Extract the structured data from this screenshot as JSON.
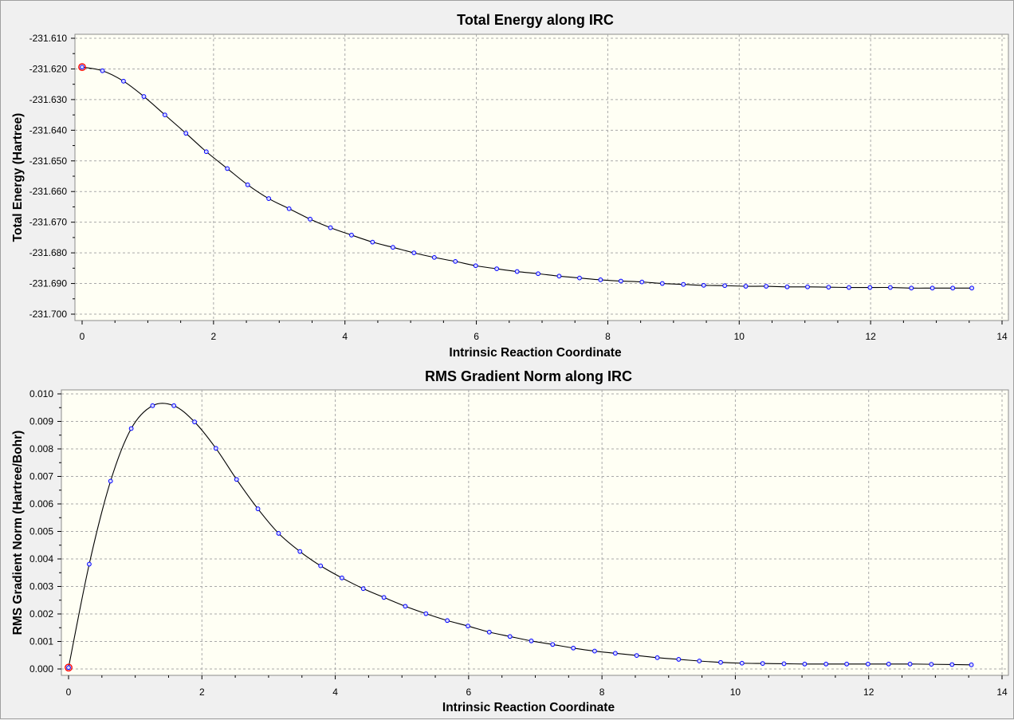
{
  "colors": {
    "plot_background": "#fffff4",
    "grid": "#a9a9a9",
    "line": "#000000",
    "marker": "#0000ff",
    "marker_fill": "#d8d8ff",
    "highlight": "#ff0000"
  },
  "chart_data": [
    {
      "type": "line",
      "title": "Total Energy along IRC",
      "xlabel": "Intrinsic Reaction Coordinate",
      "ylabel": "Total Energy (Hartree)",
      "xlim": [
        0,
        14
      ],
      "ylim": [
        -231.7,
        -231.61
      ],
      "grid": true,
      "xticks": [
        "0",
        "2",
        "4",
        "6",
        "8",
        "10",
        "12",
        "14"
      ],
      "yticks": [
        "-231.610",
        "-231.620",
        "-231.630",
        "-231.640",
        "-231.650",
        "-231.660",
        "-231.670",
        "-231.680",
        "-231.690",
        "-231.700"
      ],
      "highlight_point": [
        0.0,
        -231.6194
      ],
      "series": [
        {
          "x": [
            0.0,
            0.31,
            0.63,
            0.94,
            1.26,
            1.58,
            1.89,
            2.21,
            2.52,
            2.84,
            3.15,
            3.47,
            3.78,
            4.1,
            4.42,
            4.73,
            5.05,
            5.36,
            5.68,
            5.99,
            6.31,
            6.62,
            6.94,
            7.26,
            7.57,
            7.89,
            8.2,
            8.52,
            8.83,
            9.15,
            9.46,
            9.78,
            10.1,
            10.41,
            10.73,
            11.04,
            11.36,
            11.67,
            11.99,
            12.3,
            12.62,
            12.94,
            13.25,
            13.54
          ],
          "y": [
            -231.6194,
            -231.6206,
            -231.624,
            -231.629,
            -231.635,
            -231.641,
            -231.647,
            -231.6525,
            -231.6578,
            -231.6623,
            -231.6656,
            -231.669,
            -231.6718,
            -231.6742,
            -231.6765,
            -231.6782,
            -231.68,
            -231.6815,
            -231.6828,
            -231.6842,
            -231.6852,
            -231.6861,
            -231.6868,
            -231.6876,
            -231.6882,
            -231.6888,
            -231.6892,
            -231.6895,
            -231.69,
            -231.6903,
            -231.6906,
            -231.6907,
            -231.6909,
            -231.6909,
            -231.6911,
            -231.6911,
            -231.6912,
            -231.6913,
            -231.6913,
            -231.6913,
            -231.6915,
            -231.6915,
            -231.6915,
            -231.6915
          ]
        }
      ]
    },
    {
      "type": "line",
      "title": "RMS Gradient Norm along IRC",
      "xlabel": "Intrinsic Reaction Coordinate",
      "ylabel": "RMS Gradient Norm (Hartree/Bohr)",
      "xlim": [
        0,
        14
      ],
      "ylim": [
        0.0,
        0.01
      ],
      "grid": true,
      "xticks": [
        "0",
        "2",
        "4",
        "6",
        "8",
        "10",
        "12",
        "14"
      ],
      "yticks": [
        "0.000",
        "0.001",
        "0.002",
        "0.003",
        "0.004",
        "0.005",
        "0.006",
        "0.007",
        "0.008",
        "0.009",
        "0.010"
      ],
      "highlight_point": [
        0.0,
        5e-05
      ],
      "series": [
        {
          "x": [
            0.0,
            0.31,
            0.63,
            0.94,
            1.26,
            1.58,
            1.89,
            2.21,
            2.52,
            2.84,
            3.15,
            3.47,
            3.78,
            4.1,
            4.42,
            4.73,
            5.05,
            5.36,
            5.68,
            5.99,
            6.31,
            6.62,
            6.94,
            7.26,
            7.57,
            7.89,
            8.2,
            8.52,
            8.83,
            9.15,
            9.46,
            9.78,
            10.1,
            10.41,
            10.73,
            11.04,
            11.36,
            11.67,
            11.99,
            12.3,
            12.62,
            12.94,
            13.25,
            13.54
          ],
          "y": [
            5e-05,
            0.00381,
            0.00683,
            0.00874,
            0.00957,
            0.00957,
            0.00898,
            0.00802,
            0.00689,
            0.00582,
            0.00493,
            0.00427,
            0.00375,
            0.00331,
            0.00292,
            0.0026,
            0.00228,
            0.00201,
            0.00176,
            0.00156,
            0.00134,
            0.00118,
            0.00102,
            0.00089,
            0.00076,
            0.00065,
            0.00057,
            0.00049,
            0.00041,
            0.00035,
            0.00029,
            0.00024,
            0.00021,
            0.0002,
            0.00019,
            0.00018,
            0.00018,
            0.00018,
            0.00018,
            0.00018,
            0.00018,
            0.00017,
            0.00016,
            0.00015
          ]
        }
      ]
    }
  ]
}
